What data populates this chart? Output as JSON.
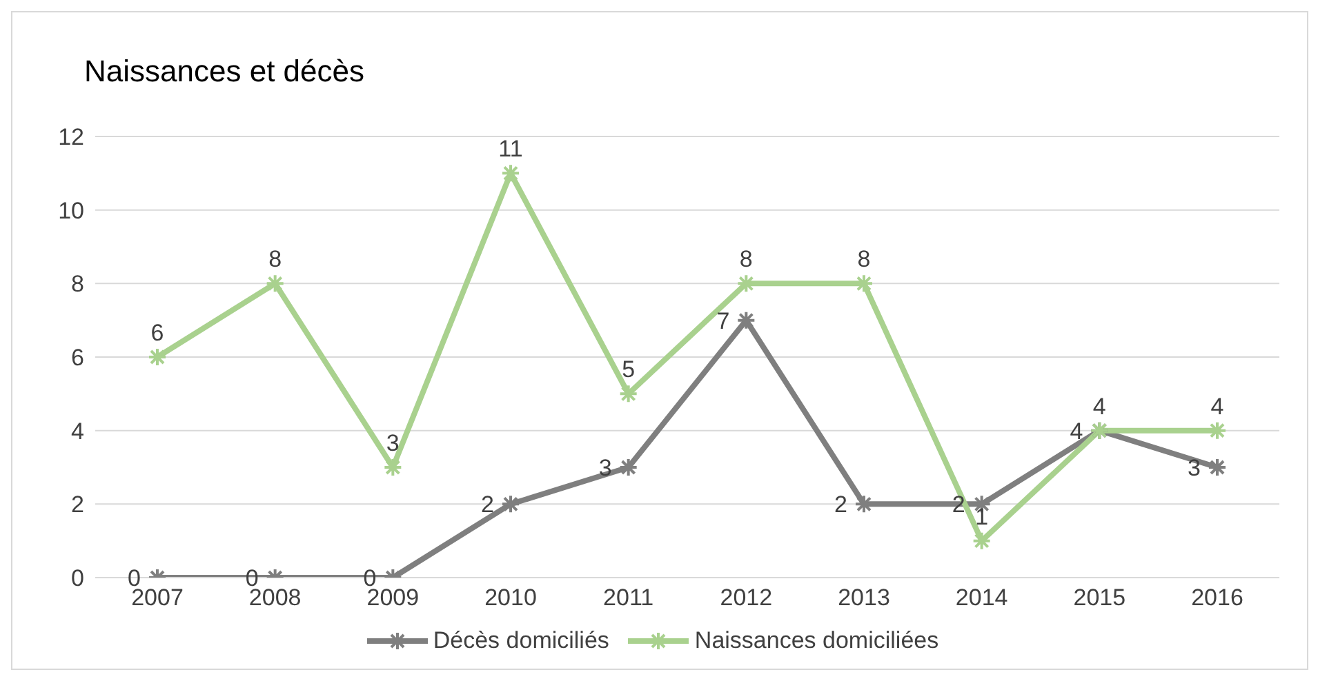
{
  "chart_data": {
    "type": "line",
    "title": "Naissances et décès",
    "categories": [
      "2007",
      "2008",
      "2009",
      "2010",
      "2011",
      "2012",
      "2013",
      "2014",
      "2015",
      "2016"
    ],
    "series": [
      {
        "name": "Décès domiciliés",
        "color": "#7f7f7f",
        "values": [
          0,
          0,
          0,
          2,
          3,
          7,
          2,
          2,
          4,
          3
        ]
      },
      {
        "name": "Naissances domiciliées",
        "color": "#a9d18e",
        "values": [
          6,
          8,
          3,
          11,
          5,
          8,
          8,
          1,
          4,
          4
        ]
      }
    ],
    "ylim": [
      0,
      12
    ],
    "yticks": [
      0,
      2,
      4,
      6,
      8,
      10,
      12
    ],
    "grid": "y",
    "legend": "bottom",
    "marker": "cross",
    "line_style": "solid",
    "data_labels": true
  }
}
